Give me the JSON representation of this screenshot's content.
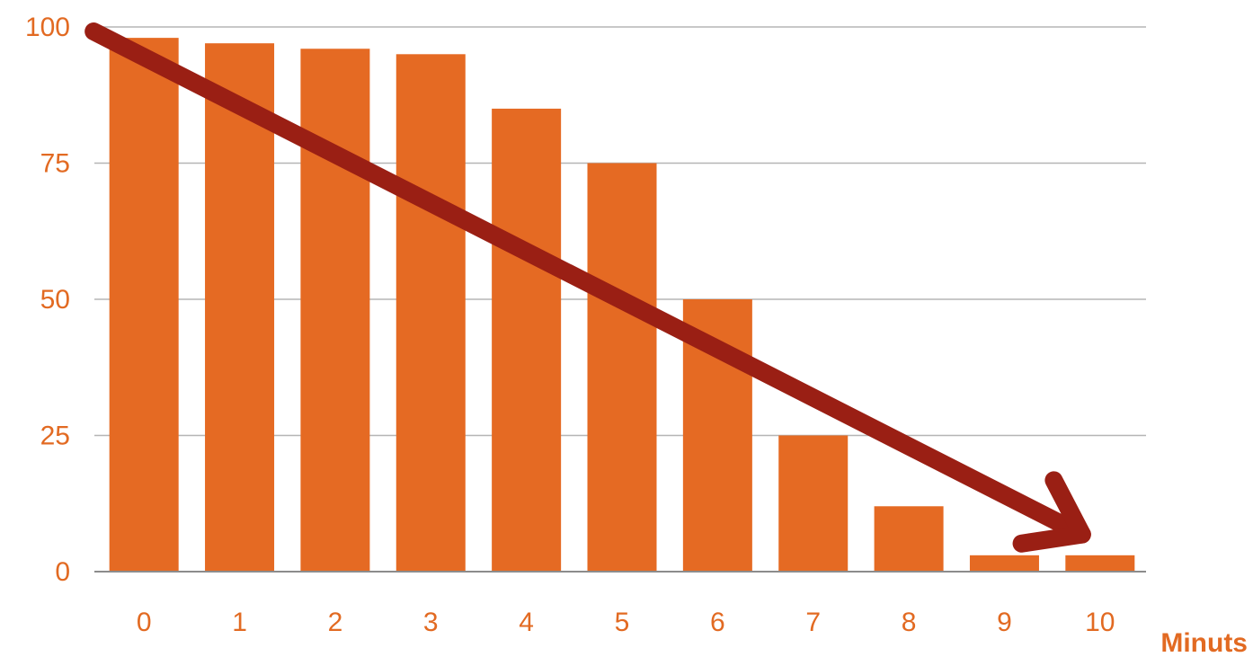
{
  "chart_data": {
    "type": "bar",
    "title": "",
    "xlabel": "Minuts",
    "ylabel": "",
    "categories": [
      "0",
      "1",
      "2",
      "3",
      "4",
      "5",
      "6",
      "7",
      "8",
      "9",
      "10"
    ],
    "values": [
      98,
      97,
      96,
      95,
      85,
      75,
      50,
      25,
      12,
      3,
      3
    ],
    "ylim": [
      0,
      100
    ],
    "yticks": [
      "0",
      "25",
      "50",
      "75",
      "100"
    ],
    "grid": true,
    "legend": "none",
    "annotations": [
      {
        "type": "trend-arrow",
        "from": {
          "x": "0",
          "y": 100
        },
        "to": {
          "x": "10",
          "y": 6
        }
      }
    ],
    "colors": {
      "bar": "#e56a23",
      "label": "#e26a22",
      "arrow": "#9a1f14",
      "grid": "#b5b5b5"
    }
  }
}
